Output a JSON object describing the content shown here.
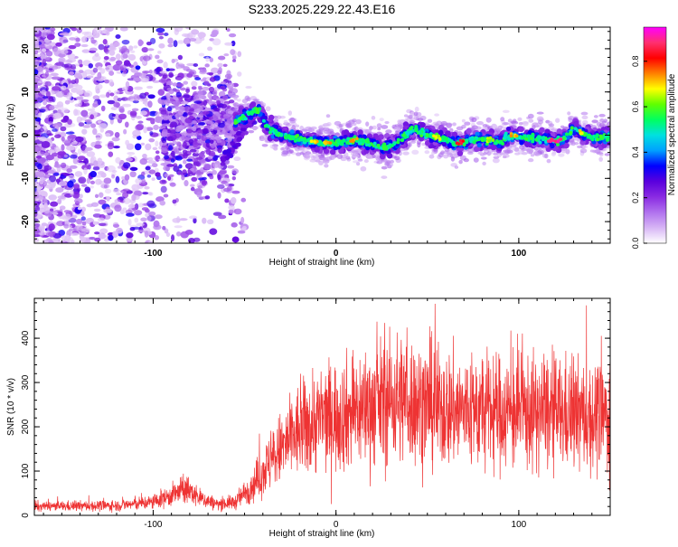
{
  "title": "S233.2025.229.22.43.E16",
  "chart_data": [
    {
      "type": "heatmap",
      "name": "spectrogram",
      "xlabel": "Height of straight line (km)",
      "ylabel": "Frequency (Hz)",
      "xlim": [
        -165,
        150
      ],
      "ylim": [
        -25,
        25
      ],
      "xticks": [
        -100,
        0,
        100
      ],
      "yticks": [
        -20,
        -10,
        0,
        10,
        20
      ],
      "colorbar": {
        "label": "Normalized spectral amplitude",
        "range": [
          0.0,
          0.95
        ],
        "ticks": [
          0.0,
          0.2,
          0.4,
          0.6,
          0.8
        ],
        "colormap": [
          "#ffffff",
          "#d7b5f5",
          "#b071ee",
          "#8a2be2",
          "#5a00dd",
          "#0000ff",
          "#00a0ff",
          "#00e0e0",
          "#00ff60",
          "#60ff00",
          "#ffff00",
          "#ff8000",
          "#ff0000",
          "#ff3070",
          "#ff00ff"
        ]
      },
      "ridge": {
        "description_points_km_hz": [
          [
            -55,
            3
          ],
          [
            -42,
            6
          ],
          [
            -38,
            2
          ],
          [
            -30,
            0
          ],
          [
            -20,
            -1
          ],
          [
            -10,
            -1.5
          ],
          [
            0,
            -2
          ],
          [
            10,
            -1
          ],
          [
            20,
            -2
          ],
          [
            28,
            -3
          ],
          [
            35,
            -1
          ],
          [
            42,
            1.5
          ],
          [
            50,
            0
          ],
          [
            60,
            -1
          ],
          [
            65,
            -2
          ],
          [
            75,
            -1
          ],
          [
            82,
            -1
          ],
          [
            90,
            -1.5
          ],
          [
            95,
            0
          ],
          [
            105,
            -0.5
          ],
          [
            115,
            -1
          ],
          [
            122,
            -1.5
          ],
          [
            130,
            1.5
          ],
          [
            140,
            -0.5
          ],
          [
            150,
            -0.5
          ]
        ],
        "secondary_points_km_hz": [
          [
            -62,
            -6
          ],
          [
            -55,
            -2
          ],
          [
            -48,
            3
          ],
          [
            -42,
            6
          ]
        ]
      }
    },
    {
      "type": "line",
      "name": "snr",
      "xlabel": "Height of straight line (km)",
      "ylabel": "SNR (10 * v/v)",
      "xlim": [
        -165,
        150
      ],
      "ylim": [
        0,
        490
      ],
      "xticks": [
        -100,
        0,
        100
      ],
      "yticks": [
        0,
        100,
        200,
        300,
        400
      ],
      "color": "#ee3333",
      "trend": [
        [
          -165,
          20
        ],
        [
          -120,
          22
        ],
        [
          -100,
          30
        ],
        [
          -90,
          45
        ],
        [
          -82,
          60
        ],
        [
          -75,
          40
        ],
        [
          -65,
          25
        ],
        [
          -55,
          30
        ],
        [
          -45,
          70
        ],
        [
          -38,
          110
        ],
        [
          -30,
          150
        ],
        [
          -20,
          190
        ],
        [
          -10,
          215
        ],
        [
          0,
          225
        ],
        [
          10,
          235
        ],
        [
          25,
          255
        ],
        [
          35,
          265
        ],
        [
          45,
          255
        ],
        [
          60,
          240
        ],
        [
          80,
          235
        ],
        [
          100,
          232
        ],
        [
          120,
          230
        ],
        [
          140,
          222
        ],
        [
          150,
          222
        ]
      ]
    }
  ]
}
